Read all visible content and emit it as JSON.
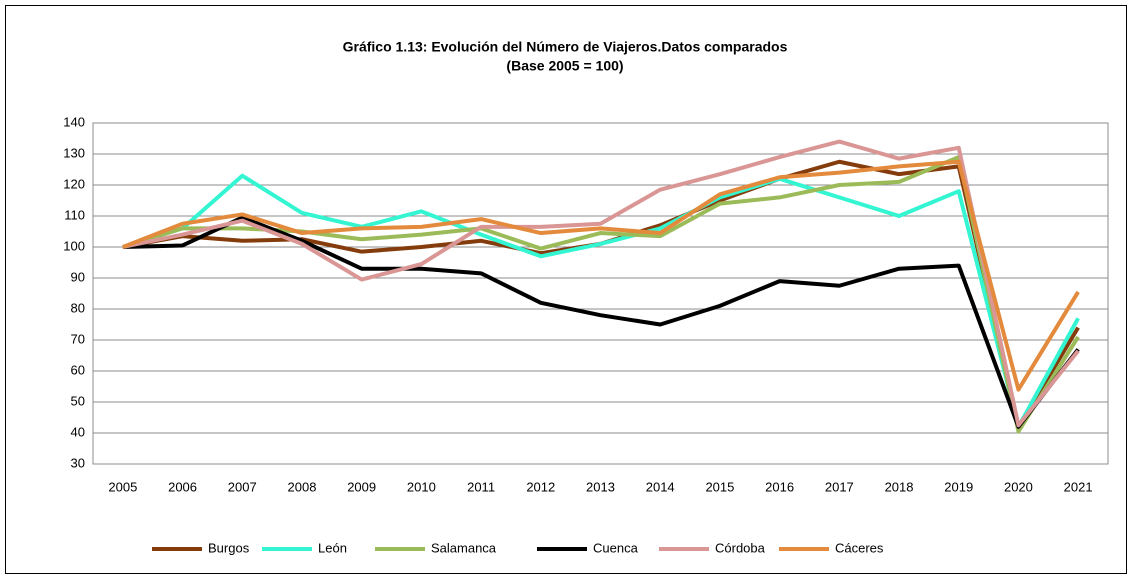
{
  "chart_data": {
    "type": "line",
    "title": "Gráfico 1.13: Evolución del Número de Viajeros.Datos comparados",
    "subtitle": "(Base 2005 = 100)",
    "categories": [
      "2005",
      "2006",
      "2007",
      "2008",
      "2009",
      "2010",
      "2011",
      "2012",
      "2013",
      "2014",
      "2015",
      "2016",
      "2017",
      "2018",
      "2019",
      "2020",
      "2021"
    ],
    "series": [
      {
        "name": "Burgos",
        "color": "#843c0c",
        "values": [
          100,
          103.5,
          102,
          102.5,
          98.5,
          100,
          102,
          98,
          101,
          107,
          115,
          122,
          127.5,
          123.5,
          126,
          42,
          74
        ]
      },
      {
        "name": "León",
        "color": "#33f5d2",
        "values": [
          100,
          106,
          123,
          111,
          106.5,
          111.5,
          104,
          97,
          101,
          106,
          116,
          122,
          116,
          110,
          118,
          42,
          77
        ]
      },
      {
        "name": "Salamanca",
        "color": "#9bbb59",
        "values": [
          100,
          106,
          106,
          105,
          102.5,
          104,
          106,
          99.5,
          104.5,
          103.5,
          114,
          116,
          120,
          121,
          129,
          40.5,
          71
        ]
      },
      {
        "name": "Cuenca",
        "color": "#000000",
        "values": [
          100,
          100.5,
          109.5,
          102,
          93,
          93,
          91.5,
          82,
          78,
          75,
          81,
          89,
          87.5,
          93,
          94,
          42,
          67
        ]
      },
      {
        "name": "Córdoba",
        "color": "#d99694",
        "values": [
          100,
          104,
          108.5,
          101,
          89.5,
          94.5,
          106.5,
          106.5,
          107.5,
          118.5,
          123.5,
          129,
          134,
          128.5,
          132,
          42.5,
          66.5
        ]
      },
      {
        "name": "Cáceres",
        "color": "#e38a3c",
        "values": [
          100,
          107.5,
          110.5,
          104.5,
          106,
          106.5,
          109,
          104.5,
          106,
          104.5,
          117,
          122.5,
          124,
          126,
          127.5,
          54,
          85.5
        ]
      }
    ],
    "ylim": [
      30,
      140
    ],
    "yticks": [
      30,
      40,
      50,
      60,
      70,
      80,
      90,
      100,
      110,
      120,
      130,
      140
    ],
    "grid": true,
    "legend": "bottom"
  }
}
